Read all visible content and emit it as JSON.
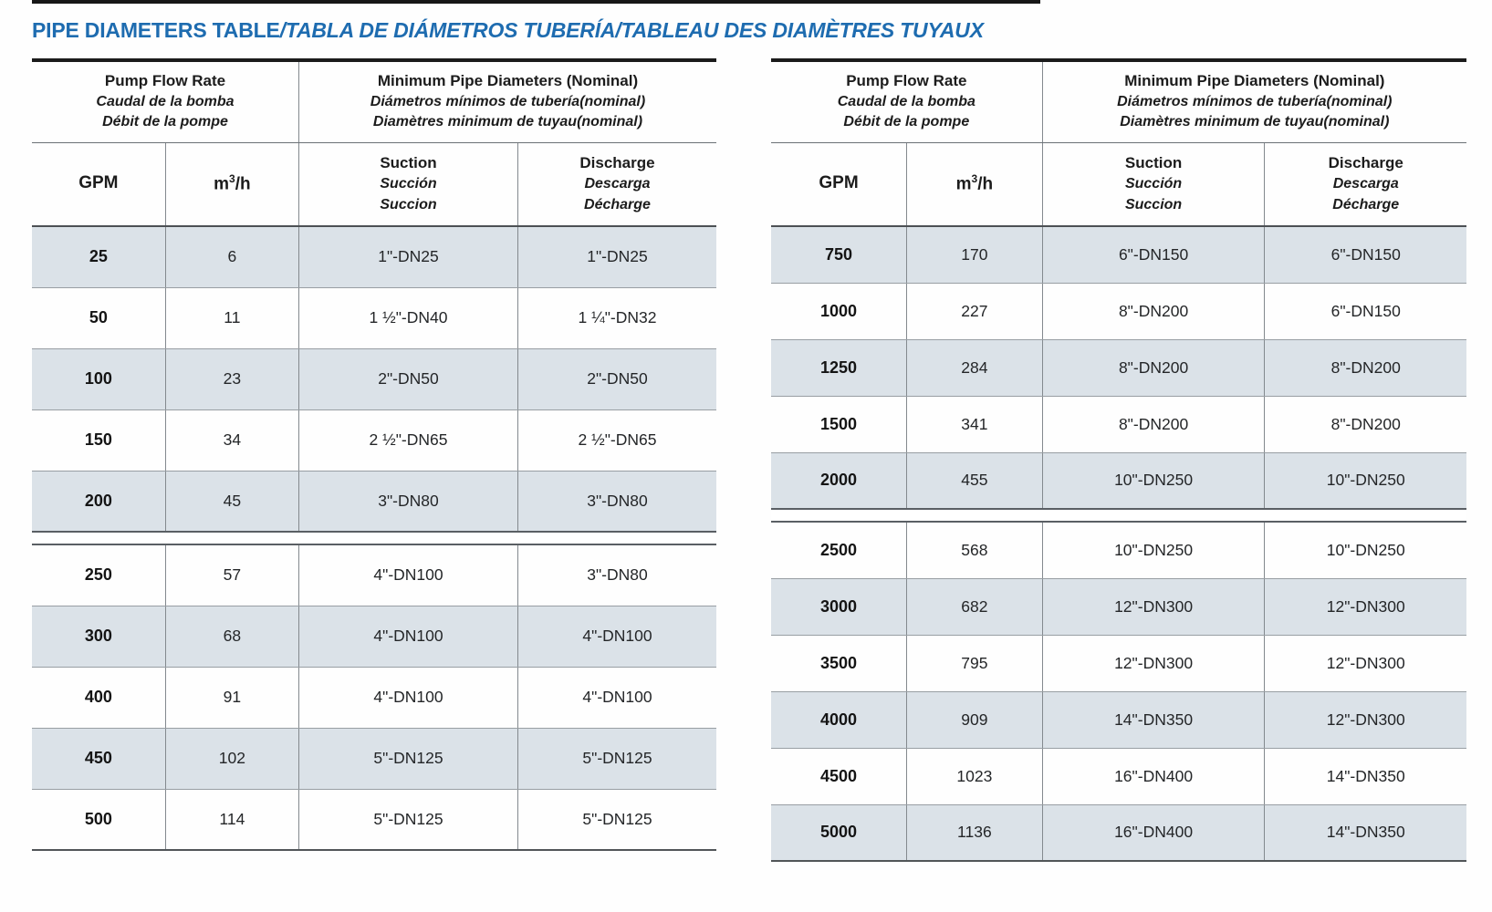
{
  "page": {
    "title_en": "PIPE DIAMETERS TABLE",
    "title_intl": "/TABLA DE DIÁMETROS TUBERÍA/TABLEAU DES DIAMÈTRES TUYAUX",
    "accent_color": "#1e6cb0",
    "row_shade_color": "#dbe2e8"
  },
  "header_labels": {
    "flow_group": [
      "Pump Flow Rate",
      "Caudal de la bomba",
      "Débit de la pompe"
    ],
    "diam_group": [
      "Minimum Pipe Diameters (Nominal)",
      "Diámetros mínimos de tubería(nominal)",
      "Diamètres minimum de tuyau(nominal)"
    ],
    "gpm": "GPM",
    "m3h": [
      "m",
      "3",
      "/h"
    ],
    "suction": [
      "Suction",
      "Succión",
      "Succion"
    ],
    "discharge": [
      "Discharge",
      "Descarga",
      "Décharge"
    ]
  },
  "tables": [
    {
      "sections": [
        [
          [
            "25",
            "6",
            "1\"-DN25",
            "1\"-DN25"
          ],
          [
            "50",
            "11",
            "1 ½\"-DN40",
            "1 ¼\"-DN32"
          ],
          [
            "100",
            "23",
            "2\"-DN50",
            "2\"-DN50"
          ],
          [
            "150",
            "34",
            "2 ½\"-DN65",
            "2 ½\"-DN65"
          ],
          [
            "200",
            "45",
            "3\"-DN80",
            "3\"-DN80"
          ]
        ],
        [
          [
            "250",
            "57",
            "4\"-DN100",
            "3\"-DN80"
          ],
          [
            "300",
            "68",
            "4\"-DN100",
            "4\"-DN100"
          ],
          [
            "400",
            "91",
            "4\"-DN100",
            "4\"-DN100"
          ],
          [
            "450",
            "102",
            "5\"-DN125",
            "5\"-DN125"
          ],
          [
            "500",
            "114",
            "5\"-DN125",
            "5\"-DN125"
          ]
        ]
      ]
    },
    {
      "sections": [
        [
          [
            "750",
            "170",
            "6\"-DN150",
            "6\"-DN150"
          ],
          [
            "1000",
            "227",
            "8\"-DN200",
            "6\"-DN150"
          ],
          [
            "1250",
            "284",
            "8\"-DN200",
            "8\"-DN200"
          ],
          [
            "1500",
            "341",
            "8\"-DN200",
            "8\"-DN200"
          ],
          [
            "2000",
            "455",
            "10\"-DN250",
            "10\"-DN250"
          ]
        ],
        [
          [
            "2500",
            "568",
            "10\"-DN250",
            "10\"-DN250"
          ],
          [
            "3000",
            "682",
            "12\"-DN300",
            "12\"-DN300"
          ],
          [
            "3500",
            "795",
            "12\"-DN300",
            "12\"-DN300"
          ],
          [
            "4000",
            "909",
            "14\"-DN350",
            "12\"-DN300"
          ],
          [
            "4500",
            "1023",
            "16\"-DN400",
            "14\"-DN350"
          ],
          [
            "5000",
            "1136",
            "16\"-DN400",
            "14\"-DN350"
          ]
        ]
      ]
    }
  ]
}
